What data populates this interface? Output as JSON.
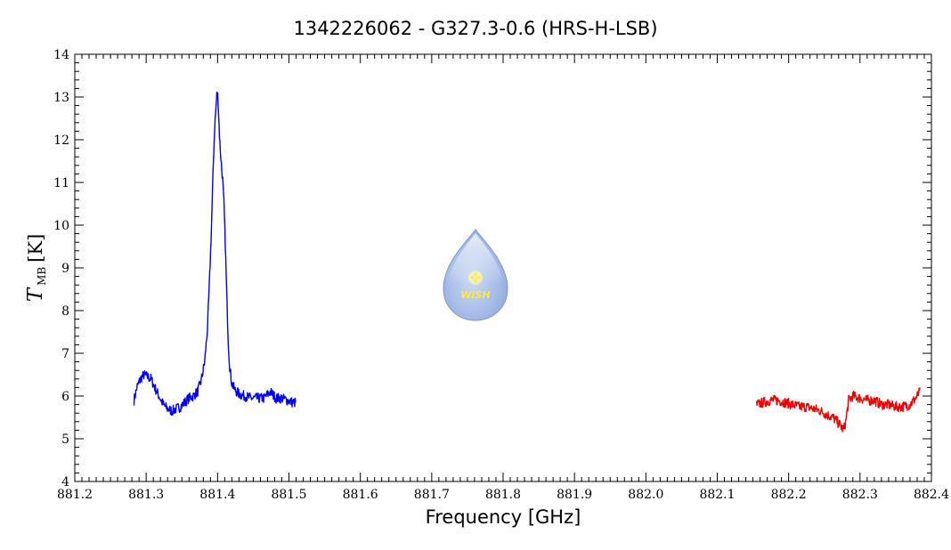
{
  "chart_data": {
    "type": "line",
    "title": "1342226062 - G327.3-0.6 (HRS-H-LSB)",
    "xlabel": "Frequency [GHz]",
    "ylabel": {
      "main": "T",
      "sub": "MB",
      "unit": "[K]"
    },
    "xlim": [
      881.2,
      882.4
    ],
    "ylim": [
      4,
      14
    ],
    "xticks": [
      881.2,
      881.3,
      881.4,
      881.5,
      881.6,
      881.7,
      881.8,
      881.9,
      882.0,
      882.1,
      882.2,
      882.3,
      882.4
    ],
    "xtick_labels": [
      "881.2",
      "881.3",
      "881.4",
      "881.5",
      "881.6",
      "881.7",
      "881.8",
      "881.9",
      "882.0",
      "882.1",
      "882.2",
      "882.3",
      "882.4"
    ],
    "yticks": [
      4,
      5,
      6,
      7,
      8,
      9,
      10,
      11,
      12,
      13,
      14
    ],
    "ytick_labels": [
      "4",
      "5",
      "6",
      "7",
      "8",
      "9",
      "10",
      "11",
      "12",
      "13",
      "14"
    ],
    "grid": false,
    "series": [
      {
        "color": "#0000ee",
        "x": [
          881.283,
          881.287,
          881.292,
          881.297,
          881.302,
          881.307,
          881.312,
          881.318,
          881.324,
          881.33,
          881.336,
          881.342,
          881.348,
          881.354,
          881.36,
          881.366,
          881.372,
          881.377,
          881.382,
          881.386,
          881.389,
          881.392,
          881.394,
          881.396,
          881.398,
          881.399,
          881.4,
          881.401,
          881.402,
          881.403,
          881.405,
          881.407,
          881.409,
          881.411,
          881.413,
          881.415,
          881.417,
          881.42,
          881.424,
          881.43,
          881.438,
          881.447,
          881.456,
          881.465,
          881.474,
          881.482,
          881.49,
          881.498,
          881.505,
          881.51
        ],
        "values": [
          5.9,
          6.2,
          6.4,
          6.5,
          6.45,
          6.4,
          6.2,
          6.0,
          5.8,
          5.7,
          5.65,
          5.7,
          5.75,
          5.85,
          5.95,
          6.0,
          6.1,
          6.35,
          6.8,
          7.6,
          8.8,
          10.2,
          11.4,
          12.3,
          12.8,
          13.05,
          13.1,
          12.85,
          12.4,
          12.0,
          11.5,
          11.1,
          10.5,
          9.5,
          8.3,
          7.3,
          6.7,
          6.3,
          6.15,
          6.05,
          6.0,
          5.95,
          5.95,
          5.95,
          6.1,
          5.95,
          5.95,
          5.9,
          5.85,
          5.85
        ]
      },
      {
        "color": "#ee0000",
        "x": [
          882.155,
          882.165,
          882.175,
          882.185,
          882.195,
          882.205,
          882.215,
          882.225,
          882.235,
          882.245,
          882.255,
          882.262,
          882.268,
          882.273,
          882.277,
          882.28,
          882.284,
          882.29,
          882.3,
          882.31,
          882.32,
          882.33,
          882.34,
          882.35,
          882.36,
          882.37,
          882.378,
          882.384
        ],
        "values": [
          5.8,
          5.85,
          5.9,
          5.9,
          5.85,
          5.8,
          5.75,
          5.75,
          5.7,
          5.65,
          5.55,
          5.5,
          5.4,
          5.3,
          5.2,
          5.4,
          5.9,
          6.0,
          5.95,
          5.9,
          5.9,
          5.8,
          5.8,
          5.75,
          5.75,
          5.8,
          5.95,
          6.1
        ]
      }
    ]
  },
  "logo": {
    "text": "WISH"
  }
}
